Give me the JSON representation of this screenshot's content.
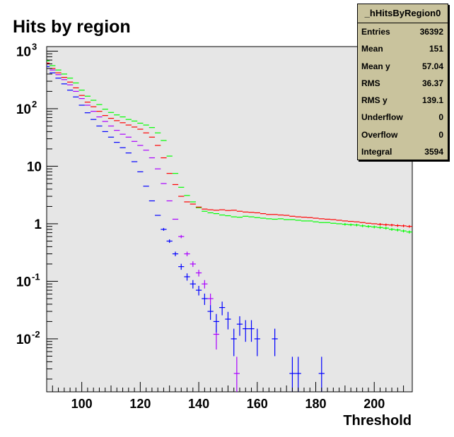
{
  "chart_data": {
    "type": "scatter",
    "title": "Hits by region",
    "xlabel": "Threshold",
    "ylabel": "",
    "xlim": [
      88,
      213
    ],
    "ylim": [
      0.0012,
      1200
    ],
    "yscale": "log",
    "x_ticks": [
      "100",
      "120",
      "140",
      "160",
      "180",
      "200"
    ],
    "y_ticks": [
      {
        "value": 1000,
        "base": "10",
        "exp": "3"
      },
      {
        "value": 100,
        "base": "10",
        "exp": "2"
      },
      {
        "value": 10,
        "base": "10",
        "exp": ""
      },
      {
        "value": 1,
        "base": "1",
        "exp": ""
      },
      {
        "value": 0.1,
        "base": "10",
        "exp": "-1"
      },
      {
        "value": 0.01,
        "base": "10",
        "exp": "-2"
      }
    ],
    "grid": false,
    "legend": "none",
    "series": [
      {
        "color": "#00ff00",
        "draw": "errorbar",
        "x": [
          88,
          90,
          92,
          94,
          96,
          98,
          100,
          102,
          104,
          106,
          108,
          110,
          112,
          114,
          116,
          118,
          120,
          122,
          124,
          126,
          128,
          130,
          132,
          134,
          136,
          138,
          140,
          142,
          144,
          146,
          148,
          150,
          152,
          154,
          156,
          158,
          160,
          162,
          164,
          166,
          168,
          170,
          172,
          174,
          176,
          178,
          180,
          182,
          184,
          186,
          188,
          190,
          192,
          194,
          196,
          198,
          200,
          202,
          204,
          206,
          208,
          210,
          212
        ],
        "y": [
          680,
          560,
          470,
          400,
          340,
          280,
          210,
          165,
          140,
          118,
          98,
          86,
          78,
          72,
          65,
          61,
          56,
          52,
          47,
          38,
          28,
          15,
          7.5,
          4.3,
          3.1,
          2.4,
          1.9,
          1.65,
          1.55,
          1.5,
          1.42,
          1.38,
          1.32,
          1.3,
          1.35,
          1.32,
          1.28,
          1.25,
          1.22,
          1.2,
          1.22,
          1.18,
          1.18,
          1.15,
          1.12,
          1.12,
          1.08,
          1.05,
          1.05,
          1.02,
          1.0,
          0.98,
          0.96,
          0.95,
          0.92,
          0.9,
          0.88,
          0.86,
          0.84,
          0.8,
          0.78,
          0.75,
          0.72
        ]
      },
      {
        "color": "#ff0000",
        "draw": "errorbar",
        "x": [
          88,
          90,
          92,
          94,
          96,
          98,
          100,
          102,
          104,
          106,
          108,
          110,
          112,
          114,
          116,
          118,
          120,
          122,
          124,
          126,
          128,
          130,
          132,
          134,
          136,
          138,
          140,
          142,
          144,
          146,
          148,
          150,
          152,
          154,
          156,
          158,
          160,
          162,
          164,
          166,
          168,
          170,
          172,
          174,
          176,
          178,
          180,
          182,
          184,
          186,
          188,
          190,
          192,
          194,
          196,
          198,
          200,
          202,
          204,
          206,
          208,
          210,
          212
        ],
        "y": [
          620,
          500,
          420,
          350,
          290,
          230,
          170,
          130,
          108,
          90,
          76,
          68,
          62,
          57,
          52,
          48,
          44,
          38,
          32,
          23,
          14,
          7.5,
          4.8,
          3.0,
          2.4,
          2.2,
          1.95,
          1.8,
          1.75,
          1.72,
          1.75,
          1.7,
          1.72,
          1.65,
          1.6,
          1.58,
          1.55,
          1.5,
          1.45,
          1.45,
          1.42,
          1.4,
          1.35,
          1.32,
          1.3,
          1.28,
          1.25,
          1.22,
          1.2,
          1.18,
          1.15,
          1.12,
          1.1,
          1.08,
          1.05,
          1.02,
          1.0,
          0.98,
          0.96,
          0.95,
          0.93,
          0.92,
          0.9
        ]
      },
      {
        "color": "#aa00ff",
        "draw": "errorbar",
        "x": [
          88,
          90,
          92,
          94,
          96,
          98,
          100,
          102,
          104,
          106,
          108,
          110,
          112,
          114,
          116,
          118,
          120,
          122,
          124,
          126,
          128,
          130,
          132,
          134,
          136,
          138,
          140,
          142,
          144,
          146,
          153
        ],
        "y": [
          600,
          470,
          390,
          320,
          260,
          200,
          150,
          115,
          90,
          72,
          60,
          50,
          42,
          36,
          32,
          27,
          23,
          19,
          14,
          9,
          5,
          2.5,
          1.2,
          0.6,
          0.3,
          0.2,
          0.14,
          0.09,
          0.05,
          0.012,
          0.0025
        ]
      },
      {
        "color": "#0000ff",
        "draw": "errorbar",
        "x": [
          88,
          90,
          92,
          94,
          96,
          98,
          100,
          102,
          104,
          106,
          108,
          110,
          112,
          114,
          116,
          118,
          120,
          122,
          124,
          126,
          128,
          130,
          132,
          134,
          136,
          138,
          140,
          142,
          144,
          146,
          148,
          150,
          152,
          154,
          156,
          158,
          160,
          166,
          172,
          174,
          182
        ],
        "y": [
          540,
          420,
          340,
          270,
          210,
          160,
          115,
          85,
          65,
          50,
          40,
          32,
          26,
          21,
          17,
          12,
          8,
          4.5,
          2.5,
          1.4,
          0.8,
          0.5,
          0.3,
          0.18,
          0.12,
          0.09,
          0.07,
          0.05,
          0.03,
          0.02,
          0.035,
          0.022,
          0.01,
          0.018,
          0.015,
          0.015,
          0.01,
          0.01,
          0.0025,
          0.0025,
          0.0025
        ]
      }
    ]
  },
  "stats_box": {
    "title": "_hHitsByRegion0",
    "rows": [
      {
        "key": "Entries",
        "value": "36392"
      },
      {
        "key": "Mean",
        "value": "151"
      },
      {
        "key": "Mean y",
        "value": "57.04"
      },
      {
        "key": "RMS",
        "value": "36.37"
      },
      {
        "key": "RMS y",
        "value": "139.1"
      },
      {
        "key": "Underflow",
        "value": "0"
      },
      {
        "key": "Overflow",
        "value": "0"
      },
      {
        "key": "Integral",
        "value": "3594"
      }
    ]
  },
  "colors": {
    "frame_fill": "#e6e6e6",
    "stats_fill": "#c9c39d"
  }
}
